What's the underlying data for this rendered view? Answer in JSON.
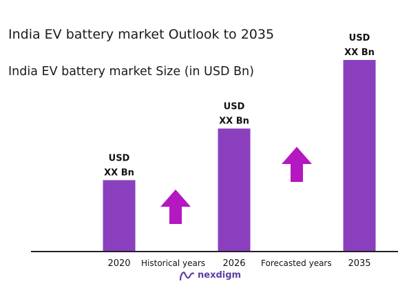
{
  "chart_data": {
    "type": "bar",
    "title": "India EV battery market  Outlook to 2035",
    "subtitle": "India EV battery market Size (in USD Bn)",
    "categories": [
      "2020",
      "2026",
      "2035"
    ],
    "values": [
      1,
      1.73,
      2.7
    ],
    "bar_labels": [
      [
        "USD",
        "XX Bn"
      ],
      [
        "USD",
        "XX Bn"
      ],
      [
        "USD",
        "XX Bn"
      ]
    ],
    "annotations": [
      "Historical years",
      "Forecasted years"
    ],
    "bar_color": "#8a3fbe",
    "arrow_color": "#b418c0",
    "ylim": [
      0,
      2.7
    ],
    "grid": false,
    "legend": "none"
  },
  "brand": {
    "name": "nexdigm",
    "color": "#5a3fa0",
    "logo_icon": "nexdigm-logo-icon"
  }
}
